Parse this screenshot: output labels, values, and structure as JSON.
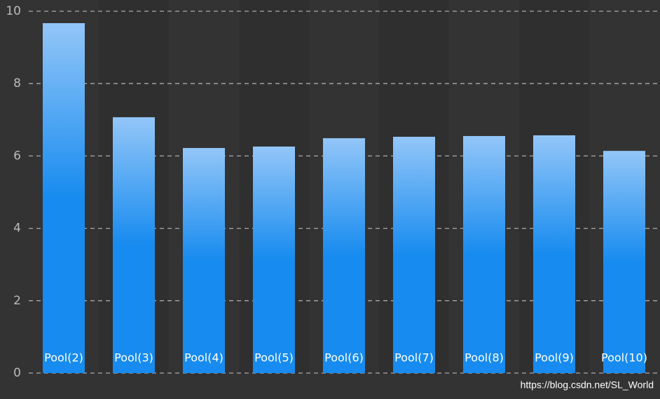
{
  "chart_data": {
    "type": "bar",
    "categories": [
      "Pool(2)",
      "Pool(3)",
      "Pool(4)",
      "Pool(5)",
      "Pool(6)",
      "Pool(7)",
      "Pool(8)",
      "Pool(9)",
      "Pool(10)"
    ],
    "values": [
      9.67,
      7.07,
      6.22,
      6.26,
      6.49,
      6.53,
      6.55,
      6.57,
      6.14
    ],
    "color": "#178bef",
    "ylim": [
      0,
      10
    ],
    "yticks": [
      0,
      2,
      4,
      6,
      8,
      10
    ],
    "grid": true,
    "watermark": "https://blog.csdn.net/SL_World"
  }
}
